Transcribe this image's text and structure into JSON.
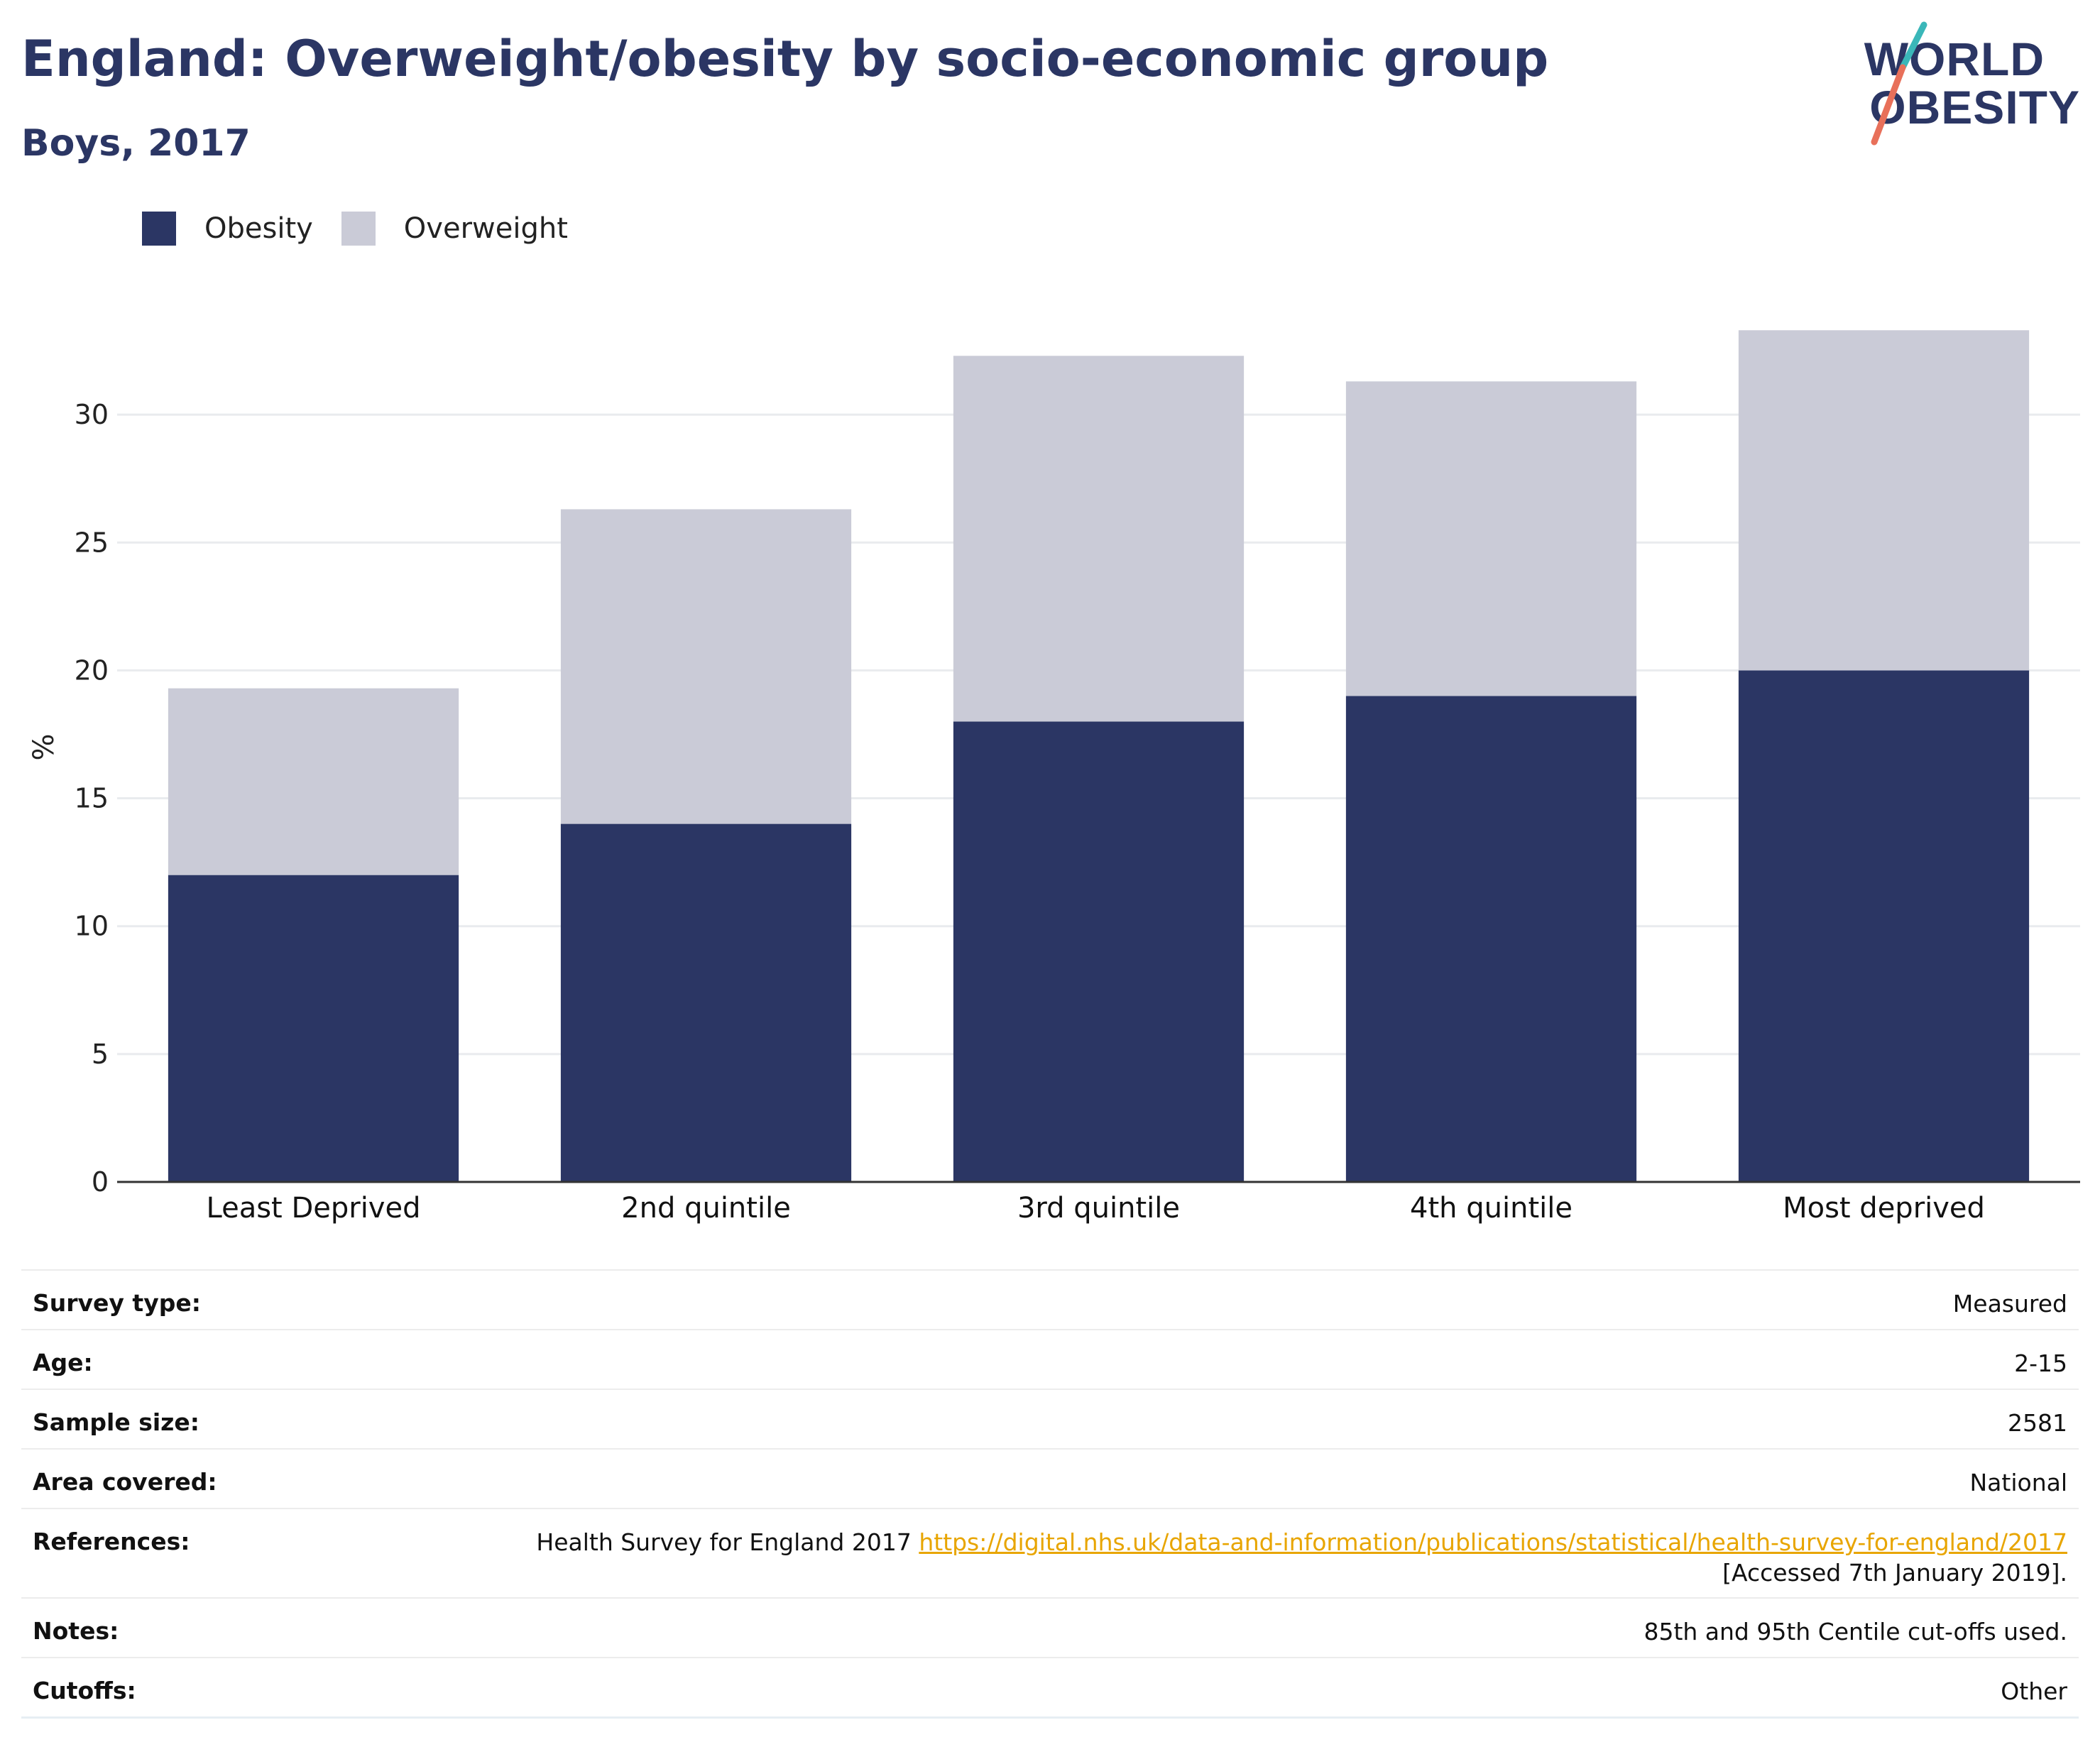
{
  "header": {
    "title": "England: Overweight/obesity by socio-economic group",
    "subtitle": "Boys, 2017"
  },
  "logo": {
    "line1": "WORLD",
    "line2": "OBESITY"
  },
  "chart_data": {
    "type": "bar",
    "stacked": true,
    "categories": [
      "Least Deprived",
      "2nd quintile",
      "3rd quintile",
      "4th quintile",
      "Most deprived"
    ],
    "series": [
      {
        "name": "Obesity",
        "values": [
          12,
          14,
          18,
          19,
          20
        ],
        "color": "#2b3664"
      },
      {
        "name": "Overweight",
        "values": [
          7.3,
          12.3,
          14.3,
          12.3,
          13.3
        ],
        "color": "#cacbd7"
      }
    ],
    "ylabel": "%",
    "xlabel": "",
    "ylim": [
      0,
      34
    ],
    "yticks": [
      0,
      5,
      10,
      15,
      20,
      25,
      30
    ],
    "grid": true,
    "legend_position": "top-left"
  },
  "meta": {
    "survey_type": {
      "label": "Survey type:",
      "value": "Measured"
    },
    "age": {
      "label": "Age:",
      "value": "2-15"
    },
    "sample_size": {
      "label": "Sample size:",
      "value": "2581"
    },
    "area_covered": {
      "label": "Area covered:",
      "value": "National"
    },
    "references": {
      "label": "References:",
      "text": "Health Survey for England 2017 ",
      "link": "https://digital.nhs.uk/data-and-information/publications/statistical/health-survey-for-england/2017",
      "accessed": "[Accessed 7th January 2019]."
    },
    "notes": {
      "label": "Notes:",
      "value": "85th and 95th Centile cut-offs used."
    },
    "cutoffs": {
      "label": "Cutoffs:",
      "value": "Other"
    }
  }
}
